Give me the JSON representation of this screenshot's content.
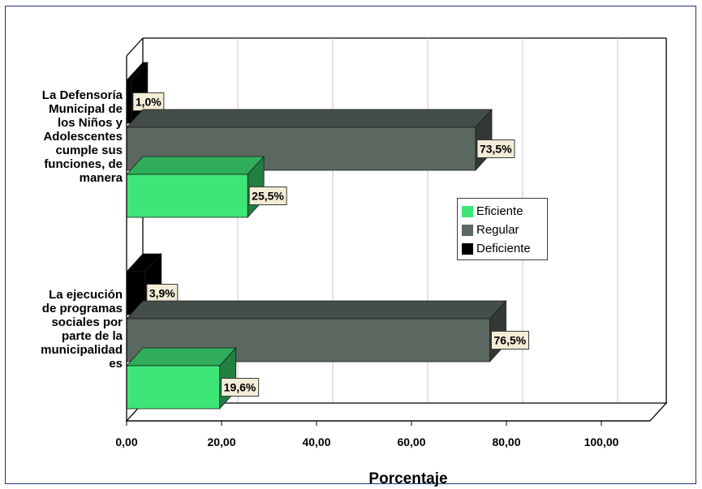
{
  "chart_data": {
    "type": "bar",
    "orientation": "horizontal",
    "style": "3d",
    "categories": [
      "La Defensoría Municipal de los Niños y Adolescentes cumple sus funciones, de manera",
      "La ejecución de programas sociales por parte de la municipalidad es"
    ],
    "series": [
      {
        "name": "Eficiente",
        "values": [
          25.5,
          19.6
        ],
        "labels": [
          "25,5%",
          "19,6%"
        ],
        "color": "#3ee678"
      },
      {
        "name": "Regular",
        "values": [
          73.5,
          76.5
        ],
        "labels": [
          "73,5%",
          "76,5%"
        ],
        "color": "#5b6860"
      },
      {
        "name": "Deficiente",
        "values": [
          1.0,
          3.9
        ],
        "labels": [
          "1,0%",
          "3,9%"
        ],
        "color": "#000000"
      }
    ],
    "xlabel": "Porcentaje",
    "ylabel": "",
    "xlim": [
      0,
      100
    ],
    "ticks": [
      "0,00",
      "20,00",
      "40,00",
      "60,00",
      "80,00",
      "100,00"
    ],
    "grid": true,
    "legend_position": "right"
  },
  "category_lines": [
    [
      "La Defensoría",
      "Municipal de",
      "los Niños y",
      "Adolescentes",
      "cumple sus",
      "funciones, de",
      "manera"
    ],
    [
      "La ejecución",
      "de programas",
      "sociales por",
      "parte de la",
      "municipalidad",
      "es"
    ]
  ]
}
